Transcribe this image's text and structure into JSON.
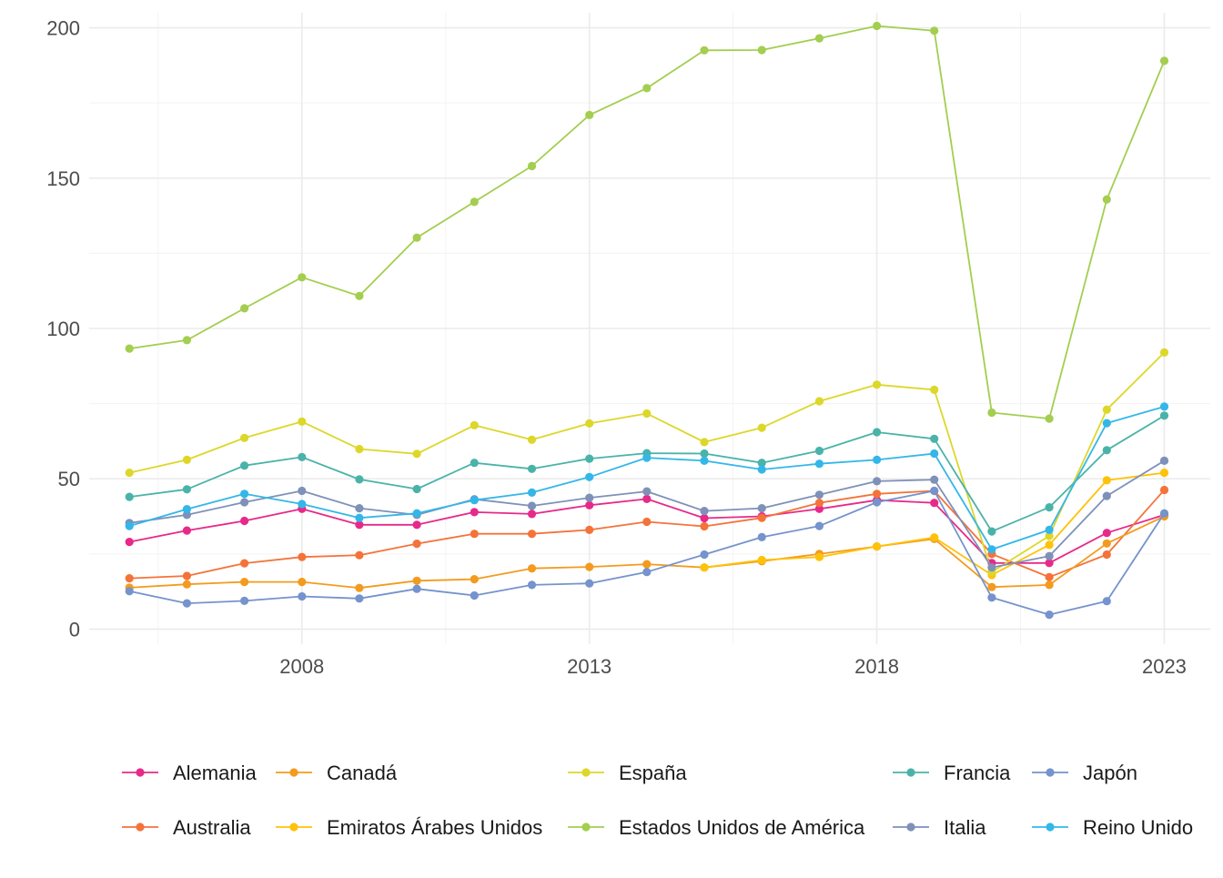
{
  "chart_data": {
    "type": "line",
    "title": "",
    "xlabel": "",
    "ylabel": "",
    "xlim": [
      2004.3,
      2023.8
    ],
    "ylim": [
      -5,
      205
    ],
    "x_ticks": [
      2008,
      2013,
      2018,
      2023
    ],
    "x_tick_labels": [
      "2008",
      "2013",
      "2018",
      "2023"
    ],
    "y_ticks": [
      0,
      50,
      100,
      150,
      200
    ],
    "y_tick_labels": [
      "0",
      "50",
      "100",
      "150",
      "200"
    ],
    "grid": true,
    "legend_position": "bottom",
    "x": [
      2005,
      2006,
      2007,
      2008,
      2009,
      2010,
      2011,
      2012,
      2013,
      2014,
      2015,
      2016,
      2017,
      2018,
      2019,
      2020,
      2021,
      2022,
      2023
    ],
    "series": [
      {
        "name": "Alemania",
        "color": "#E7298A",
        "values": [
          29.0,
          32.8,
          36.0,
          40.0,
          34.7,
          34.7,
          38.9,
          38.3,
          41.2,
          43.3,
          36.9,
          37.5,
          40.0,
          42.9,
          42.0,
          22.0,
          22.0,
          32.0,
          38.0
        ]
      },
      {
        "name": "Australia",
        "color": "#F4733A",
        "values": [
          16.9,
          17.7,
          21.9,
          24.0,
          24.6,
          28.4,
          31.7,
          31.7,
          33.0,
          35.7,
          34.2,
          37.0,
          42.0,
          45.0,
          46.0,
          25.0,
          17.3,
          24.8,
          46.3
        ]
      },
      {
        "name": "Canadá",
        "color": "#F39B1E",
        "values": [
          13.8,
          14.9,
          15.7,
          15.7,
          13.7,
          16.1,
          16.6,
          20.2,
          20.7,
          21.6,
          20.5,
          22.6,
          25.0,
          27.5,
          30.0,
          14.0,
          14.7,
          28.5,
          37.5
        ]
      },
      {
        "name": "Emiratos Árabes Unidos",
        "color": "#FFC20A",
        "values": [
          null,
          null,
          null,
          null,
          null,
          null,
          null,
          null,
          null,
          null,
          20.5,
          23.0,
          24.0,
          27.5,
          30.5,
          18.0,
          28.0,
          49.5,
          52.0
        ]
      },
      {
        "name": "España",
        "color": "#DDD72A",
        "values": [
          52.0,
          56.3,
          63.6,
          69.0,
          59.9,
          58.3,
          67.8,
          63.0,
          68.4,
          71.7,
          62.2,
          67.0,
          75.8,
          81.3,
          79.6,
          19.0,
          31.0,
          73.0,
          92.0
        ]
      },
      {
        "name": "Estados Unidos de América",
        "color": "#A3CE4F",
        "values": [
          93.3,
          96.1,
          106.7,
          117.0,
          110.8,
          130.2,
          142.1,
          154.0,
          171.0,
          179.9,
          192.5,
          192.6,
          196.5,
          200.6,
          199.0,
          72.0,
          70.0,
          142.9,
          189.0
        ]
      },
      {
        "name": "Francia",
        "color": "#4AB3A9",
        "values": [
          44.0,
          46.5,
          54.4,
          57.2,
          49.8,
          46.6,
          55.3,
          53.3,
          56.7,
          58.5,
          58.4,
          55.3,
          59.3,
          65.5,
          63.3,
          32.5,
          40.5,
          59.5,
          71.0
        ]
      },
      {
        "name": "Italia",
        "color": "#7E91B8",
        "values": [
          35.3,
          38.0,
          42.2,
          46.0,
          40.2,
          38.0,
          43.2,
          41.0,
          43.7,
          45.8,
          39.3,
          40.2,
          44.7,
          49.2,
          49.7,
          20.5,
          24.3,
          44.3,
          56.0
        ]
      },
      {
        "name": "Japón",
        "color": "#7593CC",
        "values": [
          12.6,
          8.6,
          9.4,
          10.9,
          10.2,
          13.4,
          11.2,
          14.7,
          15.2,
          19.0,
          24.8,
          30.6,
          34.3,
          42.2,
          46.0,
          10.5,
          4.8,
          9.3,
          38.5
        ]
      },
      {
        "name": "Reino Unido",
        "color": "#34B7E8",
        "values": [
          34.3,
          39.9,
          45.0,
          41.6,
          37.0,
          38.5,
          42.9,
          45.4,
          50.6,
          57.0,
          56.0,
          53.1,
          55.0,
          56.3,
          58.4,
          26.5,
          33.0,
          68.5,
          74.0
        ]
      }
    ],
    "legend_layout": [
      [
        "Alemania",
        "Canadá",
        "España",
        "Francia",
        "Japón"
      ],
      [
        "Australia",
        "Emiratos Árabes Unidos",
        "Estados Unidos de América",
        "Italia",
        "Reino Unido"
      ]
    ]
  }
}
